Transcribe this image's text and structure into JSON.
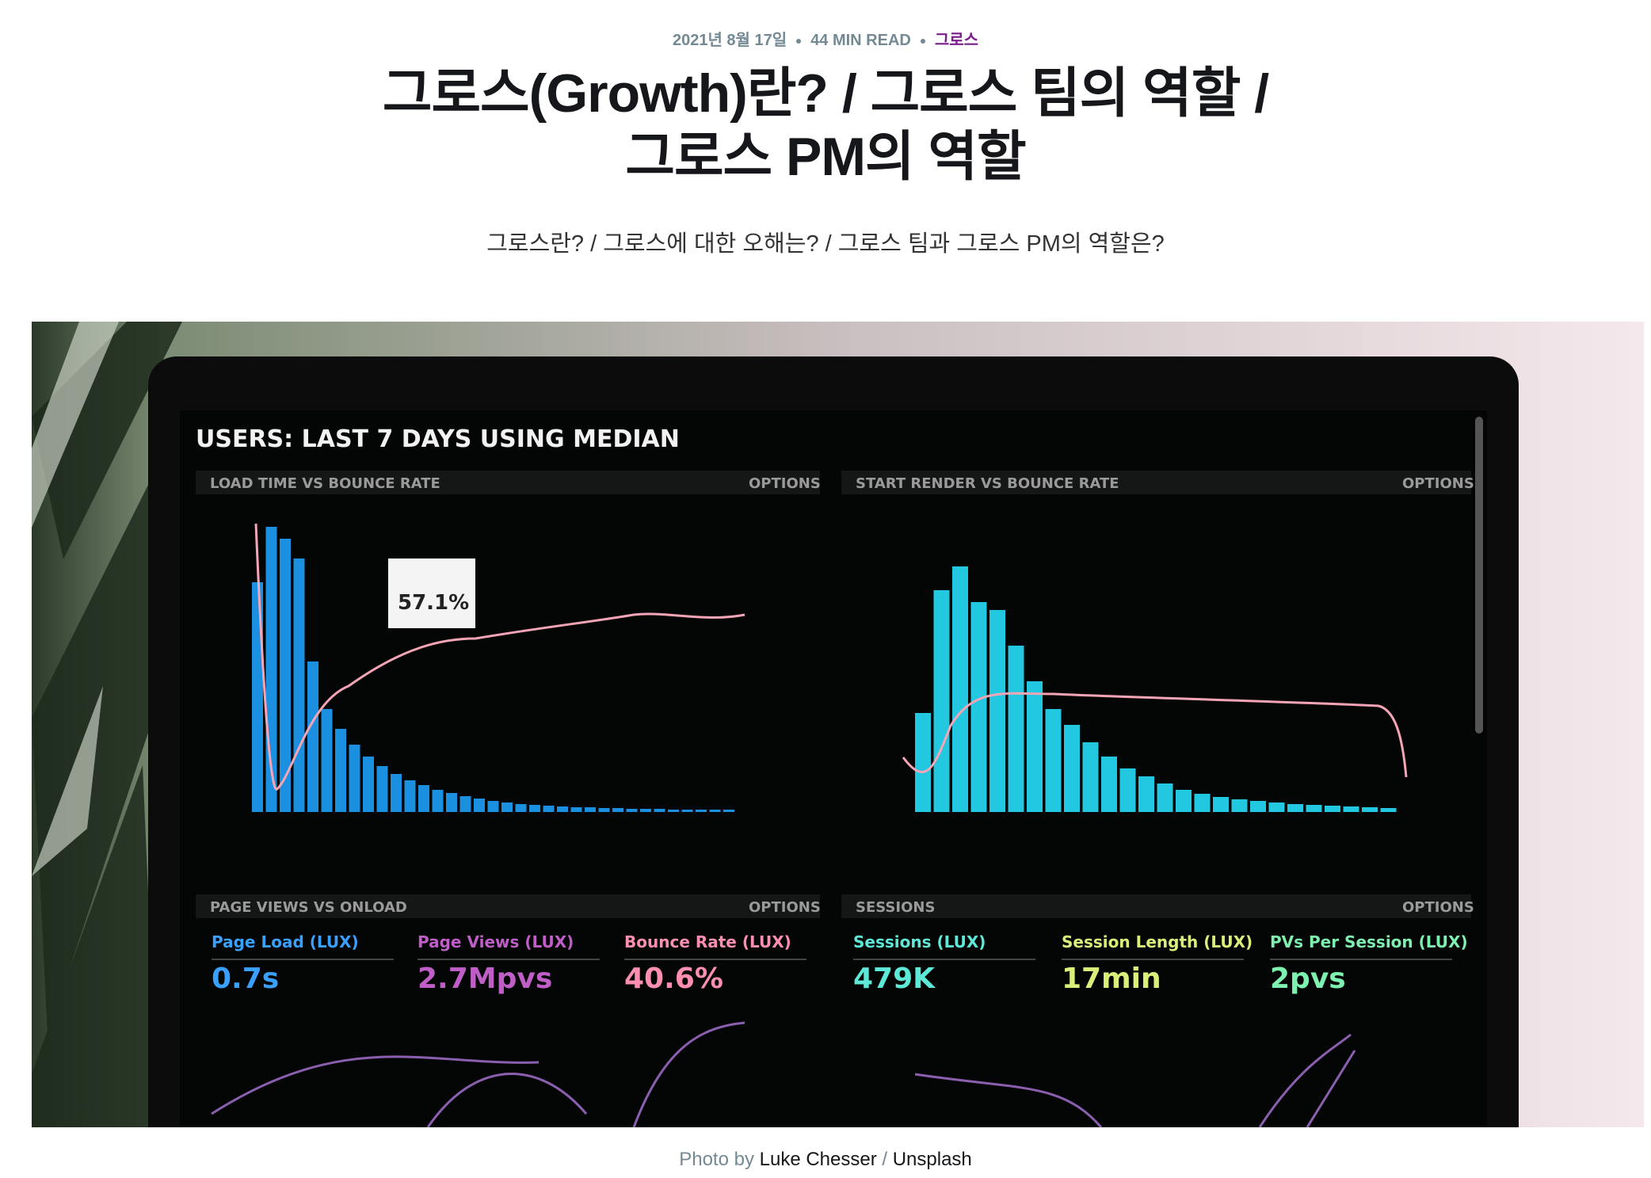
{
  "meta": {
    "date": "2021년 8월 17일",
    "read_time": "44 MIN READ",
    "tag": "그로스"
  },
  "title": [
    "그로스(Growth)란? / 그로스 팀의 역할 /",
    "그로스 PM의 역할"
  ],
  "subtitle": "그로스란? / 그로스에 대한 오해는? / 그로스 팀과 그로스 PM의 역할은?",
  "image": {
    "heading": "USERS: LAST 7 DAYS USING MEDIAN",
    "options": "OPTIONS",
    "panels": [
      "LOAD TIME VS BOUNCE RATE",
      "START RENDER VS BOUNCE RATE",
      "PAGE VIEWS VS ONLOAD",
      "SESSIONS"
    ],
    "tooltip": "57.1%",
    "metrics": [
      {
        "label": "Page Load (LUX)",
        "value": "0.7s"
      },
      {
        "label": "Page Views (LUX)",
        "value": "2.7Mpvs"
      },
      {
        "label": "Bounce Rate (LUX)",
        "value": "40.6%"
      },
      {
        "label": "Sessions (LUX)",
        "value": "479K"
      },
      {
        "label": "Session Length (LUX)",
        "value": "17min"
      },
      {
        "label": "PVs Per Session (LUX)",
        "value": "2pvs"
      }
    ]
  },
  "caption": {
    "prefix": "Photo by",
    "author": "Luke Chesser",
    "separator": "/",
    "source": "Unsplash"
  }
}
